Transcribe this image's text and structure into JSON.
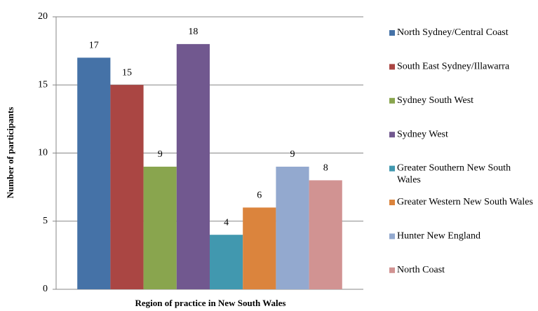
{
  "chart_data": {
    "type": "bar",
    "x_label": "Region of practice in New South Wales",
    "y_label": "Number of participants",
    "categories": [
      null
    ],
    "series": [
      {
        "name": "North Sydney/Central Coast",
        "color": "#4572A7",
        "values": [
          17
        ]
      },
      {
        "name": "South East Sydney/Illawarra",
        "color": "#AA4643",
        "values": [
          15
        ]
      },
      {
        "name": "Sydney South West",
        "color": "#89A54E",
        "values": [
          9
        ]
      },
      {
        "name": "Sydney West",
        "color": "#71588F",
        "values": [
          18
        ]
      },
      {
        "name": "Greater Southern New South Wales",
        "color": "#4198AF",
        "values": [
          4
        ]
      },
      {
        "name": "Greater Western New South Wales",
        "color": "#DB843D",
        "values": [
          6
        ]
      },
      {
        "name": "Hunter New England",
        "color": "#93A9CF",
        "values": [
          9
        ]
      },
      {
        "name": "North Coast",
        "color": "#D19392",
        "values": [
          8
        ]
      }
    ],
    "ylim": [
      0,
      20
    ],
    "yticks": [
      0,
      5,
      10,
      15,
      20
    ],
    "grid": true,
    "legend": "right"
  }
}
